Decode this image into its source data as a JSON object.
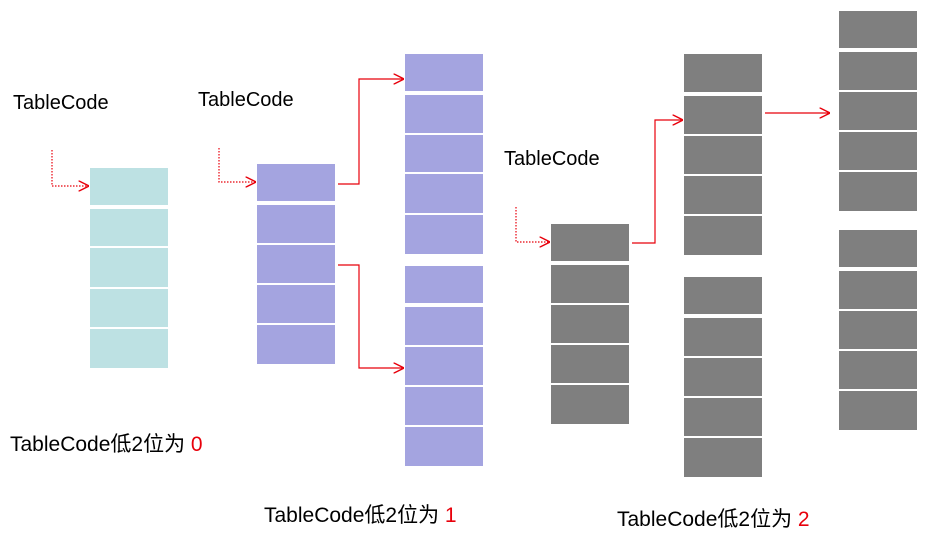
{
  "diagram": {
    "colors": {
      "teal": "#bde1e3",
      "purple": "#a4a4e0",
      "gray": "#7f7f7f",
      "separator": "#ffffff",
      "arrow": "#e8000b",
      "label": "#000000"
    },
    "labels": {
      "tablecode_0": "TableCode",
      "tablecode_1": "TableCode",
      "tablecode_2": "TableCode"
    },
    "captions": {
      "caption_0": {
        "text": "TableCode低2位为 ",
        "num": "0"
      },
      "caption_1": {
        "text": "TableCode低2位为 ",
        "num": "1"
      },
      "caption_2": {
        "text": "TableCode低2位为 ",
        "num": "2"
      }
    }
  }
}
